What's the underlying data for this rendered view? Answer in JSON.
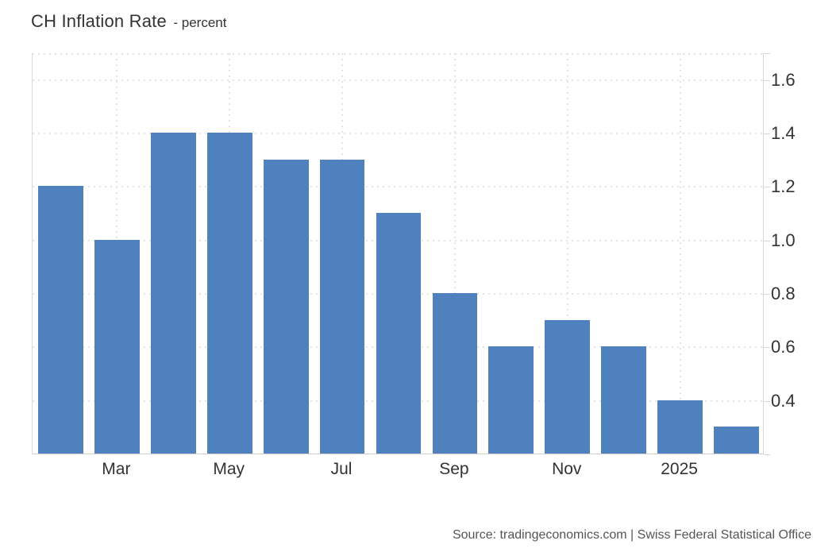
{
  "header": {
    "title": "CH Inflation Rate",
    "subtitle": "- percent"
  },
  "footer": {
    "source": "Source: tradingeconomics.com | Swiss Federal Statistical Office"
  },
  "chart_data": {
    "type": "bar",
    "title": "CH Inflation Rate",
    "ylabel": "percent",
    "categories": [
      "",
      "Mar",
      "",
      "May",
      "",
      "Jul",
      "",
      "Sep",
      "",
      "Nov",
      "",
      "2025",
      ""
    ],
    "values": [
      1.2,
      1.0,
      1.4,
      1.4,
      1.3,
      1.3,
      1.1,
      0.8,
      0.6,
      0.7,
      0.6,
      0.4,
      0.3
    ],
    "y_ticks": [
      {
        "v": 0.4,
        "label": "0.4"
      },
      {
        "v": 0.6,
        "label": "0.6"
      },
      {
        "v": 0.8,
        "label": "0.8"
      },
      {
        "v": 1.0,
        "label": "1.0"
      },
      {
        "v": 1.2,
        "label": "1.2"
      },
      {
        "v": 1.4,
        "label": "1.4"
      },
      {
        "v": 1.6,
        "label": "1.6"
      }
    ],
    "ylim": [
      0.2,
      1.7
    ],
    "grid": "dotted",
    "legend": "none",
    "bar_color": "#4e81bd",
    "gridline_color": "#e4e4e4",
    "axis_border_color": "#d6d6d6",
    "axis_text_color": "#333333"
  }
}
